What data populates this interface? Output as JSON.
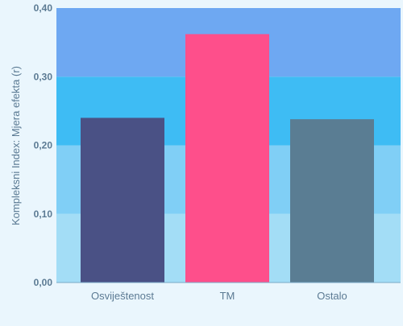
{
  "chart_data": {
    "type": "bar",
    "title": "",
    "xlabel": "",
    "ylabel": "Kompleksni Index: Mjera efekta (r)",
    "categories": [
      "Osviještenost",
      "TM",
      "Ostalo"
    ],
    "values": [
      0.24,
      0.362,
      0.238
    ],
    "ylim": [
      0,
      0.4
    ],
    "yticks": [
      "0,00",
      "0,10",
      "0,20",
      "0,30",
      "0,40"
    ],
    "ytick_values": [
      0,
      0.1,
      0.2,
      0.3,
      0.4
    ],
    "bar_colors": [
      "#4a5185",
      "#fe4f8b",
      "#5a7d93"
    ],
    "band_colors": [
      "#a3ddf6",
      "#80cff6",
      "#3ebcf4",
      "#6ea8f2"
    ],
    "grid": false,
    "legend": "none"
  }
}
